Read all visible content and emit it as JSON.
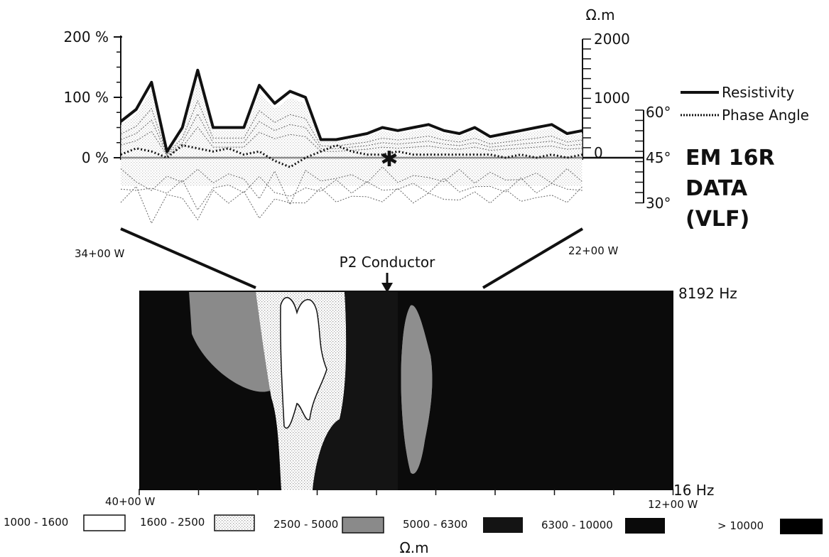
{
  "chart_data": [
    {
      "type": "line",
      "title": "EM 16R DATA (VLF)",
      "title_lines": [
        "EM 16R",
        "DATA",
        "(VLF)"
      ],
      "left_axis": {
        "ticks": [
          "200 %",
          "100 %",
          "0 %"
        ],
        "range": [
          0,
          200
        ],
        "unit": "%"
      },
      "right_axis": {
        "unit": "Ω.m",
        "ticks": [
          "2000",
          "1000",
          "0"
        ],
        "range": [
          0,
          2000
        ]
      },
      "phase_axis": {
        "ticks": [
          "60°",
          "45°",
          "30°"
        ]
      },
      "x_range_labels": {
        "left": "34+00 W",
        "right": "22+00 W"
      },
      "legend": {
        "position": "right",
        "entries": [
          "Resistivity",
          "Phase Angle"
        ]
      },
      "annotation": "P2 Conductor",
      "series": [
        {
          "name": "Resistivity",
          "x": [
            0,
            1,
            2,
            3,
            4,
            5,
            6,
            7,
            8,
            9,
            10,
            11,
            12,
            13,
            14,
            15,
            16,
            17,
            18,
            19,
            20,
            21,
            22,
            23,
            24,
            25,
            26,
            27,
            28,
            29,
            30
          ],
          "values": [
            600,
            800,
            1250,
            100,
            500,
            1450,
            500,
            500,
            500,
            1200,
            900,
            1100,
            1000,
            300,
            300,
            350,
            400,
            500,
            450,
            500,
            550,
            450,
            400,
            500,
            350,
            400,
            450,
            500,
            550,
            400,
            450
          ]
        },
        {
          "name": "Phase Angle",
          "x": [
            0,
            1,
            2,
            3,
            4,
            5,
            6,
            7,
            8,
            9,
            10,
            11,
            12,
            13,
            14,
            15,
            16,
            17,
            18,
            19,
            20,
            21,
            22,
            23,
            24,
            25,
            26,
            27,
            28,
            29,
            30
          ],
          "values": [
            46,
            48,
            47,
            45,
            49,
            48,
            47,
            48,
            46,
            47,
            44,
            42,
            45,
            47,
            49,
            47,
            46,
            46,
            47,
            46,
            46,
            46,
            46,
            46,
            46,
            45,
            46,
            45,
            46,
            45,
            46
          ]
        }
      ]
    },
    {
      "type": "heatmap",
      "y_top_label": "8192 Hz",
      "y_bottom_label": "16 Hz",
      "x_left_label": "40+00 W",
      "x_right_label": "12+00 W",
      "unit": "Ω.m",
      "legend_entries": [
        "1000 - 1600",
        "1600 - 2500",
        "2500 - 5000",
        "5000 - 6300",
        "6300 - 10000",
        "> 10000"
      ],
      "colors": [
        "#ffffff",
        "#cfcfcf",
        "#8a8a8a",
        "#141414",
        "#0a0a0a",
        "#000000"
      ]
    }
  ]
}
